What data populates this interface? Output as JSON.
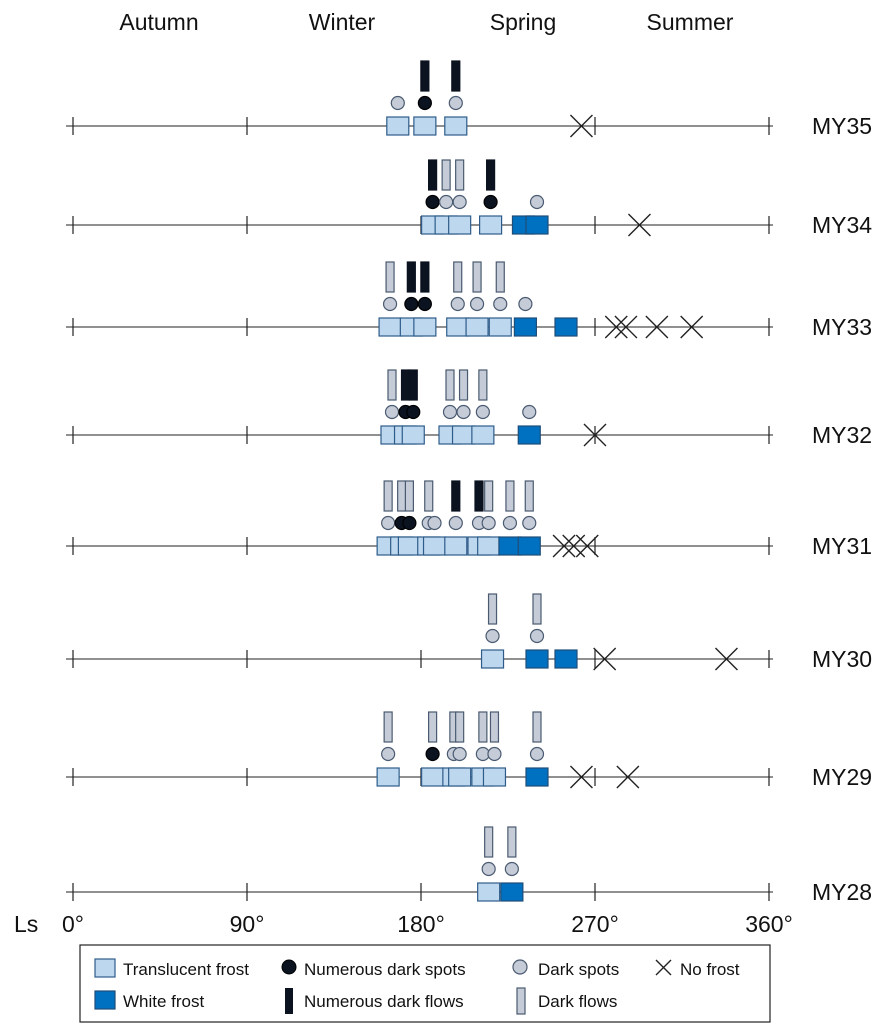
{
  "chart_data": {
    "type": "timeline",
    "axis_label": "Ls",
    "x_ticks": [
      "0°",
      "90°",
      "180°",
      "270°",
      "360°"
    ],
    "xlim": [
      0,
      360
    ],
    "seasons": [
      "Autumn",
      "Winter",
      "Spring",
      "Summer"
    ],
    "legend": {
      "translucent_frost": "Translucent frost",
      "white_frost": "White frost",
      "numerous_dark_spots": "Numerous dark spots",
      "numerous_dark_flows": "Numerous dark flows",
      "dark_spots": "Dark spots",
      "dark_flows": "Dark flows",
      "no_frost": "No frost"
    },
    "colors": {
      "translucent_frost": "#bdd7ee",
      "white_frost": "#0070c0",
      "dark_spots": "#c5ccd8",
      "numerous": "#0b1220",
      "outline": "#2e5c8a",
      "axis": "#222222"
    },
    "rows": [
      {
        "year": "MY35",
        "observations": [
          {
            "ls": 168,
            "frost": "translucent",
            "spot": "dark"
          },
          {
            "ls": 182,
            "frost": "translucent",
            "spot": "numerous",
            "flow": "numerous"
          },
          {
            "ls": 198,
            "frost": "translucent",
            "spot": "dark",
            "flow": "numerous"
          }
        ],
        "no_frost": [
          263
        ]
      },
      {
        "year": "MY34",
        "observations": [
          {
            "ls": 186,
            "frost": "translucent",
            "spot": "numerous",
            "flow": "numerous"
          },
          {
            "ls": 193,
            "frost": "translucent",
            "spot": "dark",
            "flow": "dark"
          },
          {
            "ls": 200,
            "frost": "translucent",
            "spot": "dark",
            "flow": "dark"
          },
          {
            "ls": 216,
            "frost": "translucent",
            "spot": "numerous",
            "flow": "numerous"
          },
          {
            "ls": 233,
            "frost": "white"
          },
          {
            "ls": 240,
            "frost": "white",
            "spot": "dark"
          }
        ],
        "no_frost": [
          293
        ]
      },
      {
        "year": "MY33",
        "observations": [
          {
            "ls": 164,
            "frost": "translucent",
            "spot": "dark",
            "flow": "dark"
          },
          {
            "ls": 175,
            "frost": "translucent",
            "spot": "numerous",
            "flow": "numerous"
          },
          {
            "ls": 182,
            "frost": "translucent",
            "spot": "numerous",
            "flow": "numerous"
          },
          {
            "ls": 199,
            "frost": "translucent",
            "spot": "dark",
            "flow": "dark"
          },
          {
            "ls": 209,
            "frost": "translucent",
            "spot": "dark",
            "flow": "dark"
          },
          {
            "ls": 221,
            "frost": "translucent",
            "spot": "dark",
            "flow": "dark"
          },
          {
            "ls": 234,
            "frost": "white",
            "spot": "dark"
          },
          {
            "ls": 255,
            "frost": "white"
          }
        ],
        "no_frost": [
          281,
          286,
          302,
          320
        ]
      },
      {
        "year": "MY32",
        "observations": [
          {
            "ls": 165,
            "frost": "translucent",
            "spot": "dark",
            "flow": "dark"
          },
          {
            "ls": 172,
            "frost": "translucent",
            "spot": "numerous",
            "flow": "numerous"
          },
          {
            "ls": 176,
            "frost": "translucent",
            "spot": "numerous",
            "flow": "numerous"
          },
          {
            "ls": 195,
            "frost": "translucent",
            "spot": "dark",
            "flow": "dark"
          },
          {
            "ls": 202,
            "frost": "translucent",
            "spot": "dark",
            "flow": "dark"
          },
          {
            "ls": 212,
            "frost": "translucent",
            "spot": "dark",
            "flow": "dark"
          },
          {
            "ls": 236,
            "frost": "white",
            "spot": "dark"
          }
        ],
        "no_frost": [
          270
        ]
      },
      {
        "year": "MY31",
        "observations": [
          {
            "ls": 163,
            "frost": "translucent",
            "spot": "dark",
            "flow": "dark"
          },
          {
            "ls": 170,
            "frost": "translucent",
            "spot": "numerous",
            "flow": "dark"
          },
          {
            "ls": 174,
            "frost": "translucent",
            "spot": "numerous",
            "flow": "dark"
          },
          {
            "ls": 184,
            "frost": "translucent",
            "spot": "dark",
            "flow": "dark"
          },
          {
            "ls": 187,
            "frost": "translucent",
            "spot": "dark"
          },
          {
            "ls": 198,
            "frost": "translucent",
            "spot": "dark",
            "flow": "numerous"
          },
          {
            "ls": 210,
            "frost": "translucent",
            "spot": "dark",
            "flow": "numerous"
          },
          {
            "ls": 215,
            "frost": "translucent",
            "spot": "dark",
            "flow": "dark"
          },
          {
            "ls": 226,
            "frost": "white",
            "spot": "dark",
            "flow": "dark"
          },
          {
            "ls": 236,
            "frost": "white",
            "spot": "dark",
            "flow": "dark"
          }
        ],
        "no_frost": [
          254,
          259,
          266
        ]
      },
      {
        "year": "MY30",
        "observations": [
          {
            "ls": 217,
            "frost": "translucent",
            "spot": "dark",
            "flow": "dark"
          },
          {
            "ls": 240,
            "frost": "white",
            "spot": "dark",
            "flow": "dark"
          },
          {
            "ls": 255,
            "frost": "white"
          }
        ],
        "no_frost": [
          275,
          338
        ]
      },
      {
        "year": "MY29",
        "observations": [
          {
            "ls": 163,
            "frost": "translucent",
            "spot": "dark",
            "flow": "dark"
          },
          {
            "ls": 186,
            "frost": "translucent",
            "spot": "numerous",
            "flow": "dark"
          },
          {
            "ls": 197,
            "frost": "translucent",
            "spot": "dark",
            "flow": "dark"
          },
          {
            "ls": 200,
            "frost": "translucent",
            "spot": "dark",
            "flow": "dark"
          },
          {
            "ls": 212,
            "frost": "translucent",
            "spot": "dark",
            "flow": "dark"
          },
          {
            "ls": 218,
            "frost": "translucent",
            "spot": "dark",
            "flow": "dark"
          },
          {
            "ls": 240,
            "frost": "white",
            "spot": "dark",
            "flow": "dark"
          }
        ],
        "no_frost": [
          263,
          287
        ]
      },
      {
        "year": "MY28",
        "observations": [
          {
            "ls": 215,
            "frost": "translucent",
            "spot": "dark",
            "flow": "dark"
          },
          {
            "ls": 227,
            "frost": "white",
            "spot": "dark",
            "flow": "dark"
          }
        ],
        "no_frost": []
      }
    ]
  }
}
